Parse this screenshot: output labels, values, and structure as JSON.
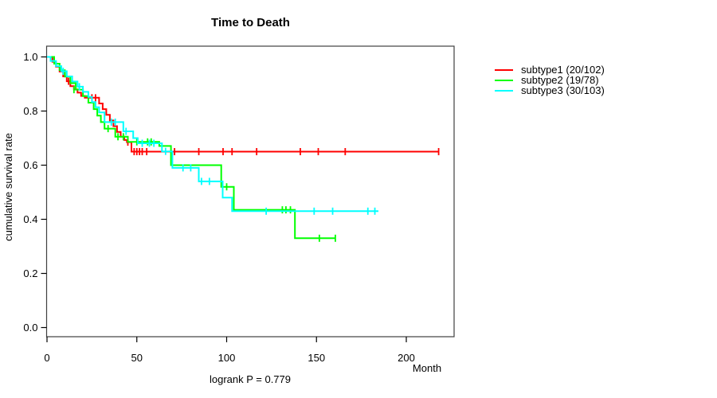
{
  "chart_data": {
    "type": "line",
    "variant": "kaplan-meier-step-curves",
    "title": "Time to Death",
    "xlabel": "Month",
    "ylabel": "cumulative survival rate",
    "footnote": "logrank P = 0.779",
    "legend_position": "right",
    "grid": false,
    "axes": {
      "x": {
        "range": [
          0,
          226.6
        ],
        "tick_values": [
          0,
          50,
          100,
          150,
          200
        ],
        "tick_labels": [
          "0",
          "50",
          "100",
          "150",
          "200"
        ]
      },
      "y": {
        "range": [
          -0.03,
          1.04
        ],
        "tick_values": [
          0,
          0.2,
          0.4,
          0.6,
          0.8,
          1
        ],
        "tick_labels": [
          "0.0",
          "0.2",
          "0.4",
          "0.6",
          "0.8",
          "1.0"
        ]
      }
    },
    "series": [
      {
        "id": "subtype1",
        "name": "subtype1 (20/102)",
        "color": "#ff0000",
        "events": 20,
        "n": 102,
        "steps": [
          [
            0,
            1.0
          ],
          [
            3,
            0.982
          ],
          [
            5,
            0.964
          ],
          [
            7,
            0.946
          ],
          [
            9,
            0.928
          ],
          [
            11,
            0.91
          ],
          [
            13,
            0.892
          ],
          [
            15,
            0.88
          ],
          [
            17,
            0.868
          ],
          [
            19,
            0.856
          ],
          [
            21,
            0.849
          ],
          [
            29,
            0.828
          ],
          [
            31,
            0.807
          ],
          [
            33,
            0.786
          ],
          [
            35,
            0.765
          ],
          [
            37,
            0.744
          ],
          [
            39,
            0.723
          ],
          [
            41,
            0.705
          ],
          [
            43,
            0.693
          ],
          [
            44.5,
            0.685
          ],
          [
            47,
            0.65
          ]
        ],
        "end_month": 218,
        "censor_marks": [
          [
            12,
            0.91
          ],
          [
            25,
            0.849
          ],
          [
            27,
            0.849
          ],
          [
            45,
            0.685
          ],
          [
            48.5,
            0.65
          ],
          [
            50,
            0.65
          ],
          [
            51.5,
            0.65
          ],
          [
            53,
            0.65
          ],
          [
            55.5,
            0.65
          ],
          [
            71,
            0.65
          ],
          [
            84.5,
            0.65
          ],
          [
            98,
            0.65
          ],
          [
            103,
            0.65
          ],
          [
            116.7,
            0.65
          ],
          [
            141,
            0.65
          ],
          [
            151,
            0.65
          ],
          [
            166,
            0.65
          ],
          [
            218,
            0.65
          ]
        ]
      },
      {
        "id": "subtype2",
        "name": "subtype2 (19/78)",
        "color": "#00ff00",
        "events": 19,
        "n": 78,
        "steps": [
          [
            0,
            1.0
          ],
          [
            4,
            0.975
          ],
          [
            7,
            0.951
          ],
          [
            10,
            0.927
          ],
          [
            13,
            0.903
          ],
          [
            16,
            0.879
          ],
          [
            20,
            0.855
          ],
          [
            23,
            0.831
          ],
          [
            26,
            0.807
          ],
          [
            28,
            0.783
          ],
          [
            30,
            0.759
          ],
          [
            32,
            0.735
          ],
          [
            38,
            0.705
          ],
          [
            45,
            0.686
          ],
          [
            62.5,
            0.671
          ],
          [
            69,
            0.6
          ],
          [
            97,
            0.52
          ],
          [
            104,
            0.435
          ],
          [
            138,
            0.33
          ]
        ],
        "end_month": 160.5,
        "censor_marks": [
          [
            15,
            0.879
          ],
          [
            34,
            0.735
          ],
          [
            39.5,
            0.705
          ],
          [
            42.5,
            0.705
          ],
          [
            50,
            0.686
          ],
          [
            56,
            0.686
          ],
          [
            58,
            0.686
          ],
          [
            100,
            0.52
          ],
          [
            131,
            0.435
          ],
          [
            133,
            0.435
          ],
          [
            135.5,
            0.435
          ],
          [
            151.6,
            0.33
          ],
          [
            160.5,
            0.33
          ]
        ]
      },
      {
        "id": "subtype3",
        "name": "subtype3 (30/103)",
        "color": "#00ffff",
        "events": 30,
        "n": 103,
        "steps": [
          [
            0,
            1.0
          ],
          [
            2,
            0.985
          ],
          [
            5,
            0.966
          ],
          [
            8,
            0.947
          ],
          [
            11,
            0.928
          ],
          [
            14,
            0.909
          ],
          [
            17,
            0.89
          ],
          [
            20,
            0.871
          ],
          [
            23,
            0.852
          ],
          [
            25,
            0.833
          ],
          [
            27,
            0.814
          ],
          [
            29,
            0.795
          ],
          [
            32,
            0.759
          ],
          [
            42.5,
            0.725
          ],
          [
            48,
            0.7
          ],
          [
            50.5,
            0.681
          ],
          [
            64,
            0.651
          ],
          [
            69.8,
            0.59
          ],
          [
            84.5,
            0.54
          ],
          [
            97.8,
            0.48
          ],
          [
            103,
            0.43
          ]
        ],
        "end_month": 184.5,
        "censor_marks": [
          [
            9,
            0.947
          ],
          [
            18,
            0.89
          ],
          [
            35.8,
            0.759
          ],
          [
            38,
            0.759
          ],
          [
            44,
            0.725
          ],
          [
            53,
            0.681
          ],
          [
            57,
            0.681
          ],
          [
            59.5,
            0.681
          ],
          [
            66,
            0.651
          ],
          [
            75.7,
            0.59
          ],
          [
            80,
            0.59
          ],
          [
            86,
            0.54
          ],
          [
            90.4,
            0.54
          ],
          [
            122,
            0.43
          ],
          [
            148.7,
            0.43
          ],
          [
            159,
            0.43
          ],
          [
            178.6,
            0.43
          ],
          [
            182.5,
            0.43
          ]
        ]
      }
    ]
  }
}
